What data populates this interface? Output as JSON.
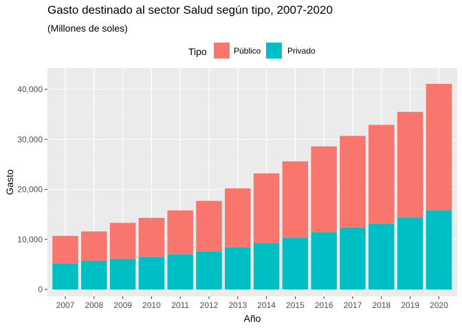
{
  "chart_data": {
    "type": "bar",
    "stacked": true,
    "title": "Gasto destinado al sector Salud según tipo, 2007-2020",
    "subtitle": "(Millones de soles)",
    "xlabel": "Año",
    "ylabel": "Gasto",
    "categories": [
      "2007",
      "2008",
      "2009",
      "2010",
      "2011",
      "2012",
      "2013",
      "2014",
      "2015",
      "2016",
      "2017",
      "2018",
      "2019",
      "2020"
    ],
    "series": [
      {
        "name": "Privado",
        "color": "#00BFC4",
        "values": [
          5200,
          5700,
          6100,
          6500,
          7000,
          7600,
          8400,
          9300,
          10300,
          11400,
          12400,
          13100,
          14400,
          15800
        ]
      },
      {
        "name": "Público",
        "color": "#F8766D",
        "values": [
          5500,
          5900,
          7200,
          7800,
          8800,
          10100,
          11800,
          13900,
          15300,
          17200,
          18300,
          19800,
          21100,
          25300
        ]
      }
    ],
    "ylim": [
      0,
      42000
    ],
    "yticks": [
      0,
      10000,
      20000,
      30000,
      40000
    ],
    "ytick_labels": [
      "0",
      "10,000",
      "20,000",
      "30,000",
      "40,000"
    ],
    "legend": {
      "title": "Tipo",
      "position": "top",
      "entries": [
        "Público",
        "Privado"
      ]
    },
    "grid": true,
    "panel_background": "#EBEBEB"
  }
}
